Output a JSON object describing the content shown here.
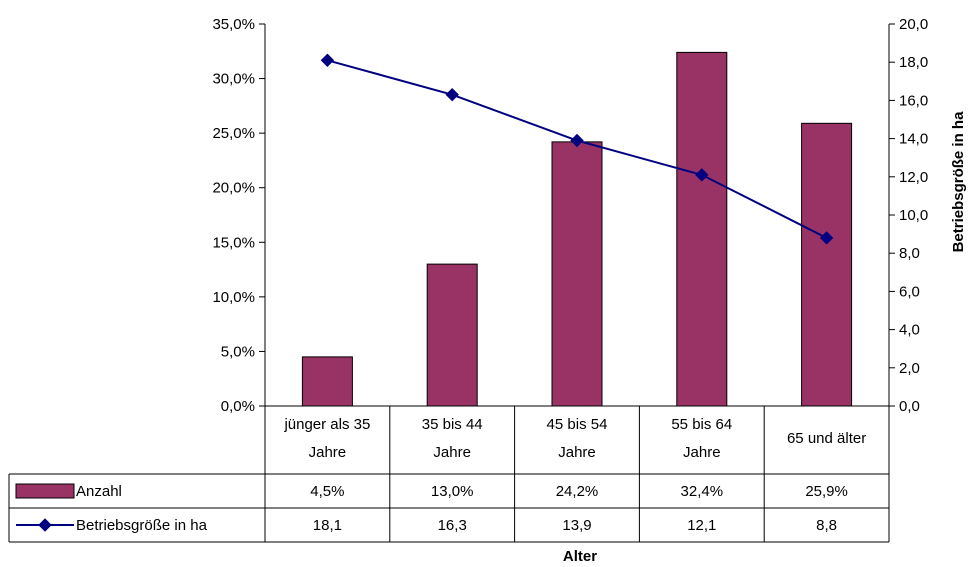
{
  "chart_data": {
    "type": "bar",
    "categories": [
      [
        "jünger als 35",
        "Jahre"
      ],
      [
        "35 bis 44",
        "Jahre"
      ],
      [
        "45 bis 54",
        "Jahre"
      ],
      [
        "55 bis 64",
        "Jahre"
      ],
      [
        "65 und älter"
      ]
    ],
    "series": [
      {
        "name": "Anzahl",
        "kind": "bar",
        "axis": "left",
        "values": [
          4.5,
          13.0,
          24.2,
          32.4,
          25.9
        ],
        "labels": [
          "4,5%",
          "13,0%",
          "24,2%",
          "32,4%",
          "25,9%"
        ],
        "color": "#993366"
      },
      {
        "name": "Betriebsgröße in ha",
        "kind": "line",
        "axis": "right",
        "marker": "diamond",
        "values": [
          18.1,
          16.3,
          13.9,
          12.1,
          8.8
        ],
        "labels": [
          "18,1",
          "16,3",
          "13,9",
          "12,1",
          "8,8"
        ],
        "color": "#000080"
      }
    ],
    "y_left": {
      "ylim": [
        0,
        35
      ],
      "ticks": [
        "0,0%",
        "5,0%",
        "10,0%",
        "15,0%",
        "20,0%",
        "25,0%",
        "30,0%",
        "35,0%"
      ]
    },
    "y_right": {
      "label": "Betriebsgröße in ha",
      "ylim": [
        0,
        20
      ],
      "ticks": [
        "0,0",
        "2,0",
        "4,0",
        "6,0",
        "8,0",
        "10,0",
        "12,0",
        "14,0",
        "16,0",
        "18,0",
        "20,0"
      ]
    },
    "xlabel": "Alter",
    "grid": false,
    "legend": "data-table-left",
    "data_table": true
  }
}
